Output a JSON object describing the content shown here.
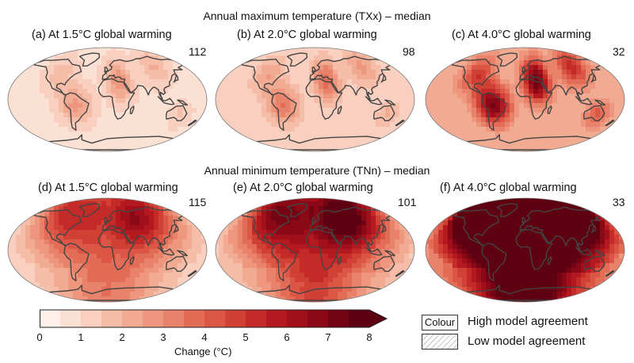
{
  "rows": [
    {
      "title": "Annual maximum temperature (TXx) – median",
      "panels": [
        {
          "label": "(a) At 1.5°C global warming",
          "count": "112",
          "level": 1.5,
          "pattern": "txx"
        },
        {
          "label": "(b) At 2.0°C global warming",
          "count": "98",
          "level": 2.0,
          "pattern": "txx"
        },
        {
          "label": "(c) At 4.0°C global warming",
          "count": "32",
          "level": 4.0,
          "pattern": "txx"
        }
      ]
    },
    {
      "title": "Annual minimum temperature (TNn) – median",
      "panels": [
        {
          "label": "(d) At 1.5°C global warming",
          "count": "115",
          "level": 1.5,
          "pattern": "tnn"
        },
        {
          "label": "(e) At 2.0°C global warming",
          "count": "101",
          "level": 2.0,
          "pattern": "tnn"
        },
        {
          "label": "(f) At 4.0°C global warming",
          "count": "33",
          "level": 4.0,
          "pattern": "tnn"
        }
      ]
    }
  ],
  "colorbar": {
    "title": "Change (°C)",
    "ticks": [
      "0",
      "1",
      "2",
      "3",
      "4",
      "5",
      "6",
      "7",
      "8"
    ],
    "min": 0,
    "max": 8,
    "step": 0.5,
    "colors": [
      "#fdf0ea",
      "#fbe0d4",
      "#f9d0bf",
      "#f6bea9",
      "#f2ab93",
      "#ee977e",
      "#e9826a",
      "#e36c56",
      "#db5645",
      "#d14035",
      "#c42b28",
      "#b3191f",
      "#a00f1a",
      "#8b0916",
      "#740413",
      "#5e0110"
    ]
  },
  "legend": {
    "colour_box": "Colour",
    "high": "High model agreement",
    "low": "Low model agreement"
  }
}
